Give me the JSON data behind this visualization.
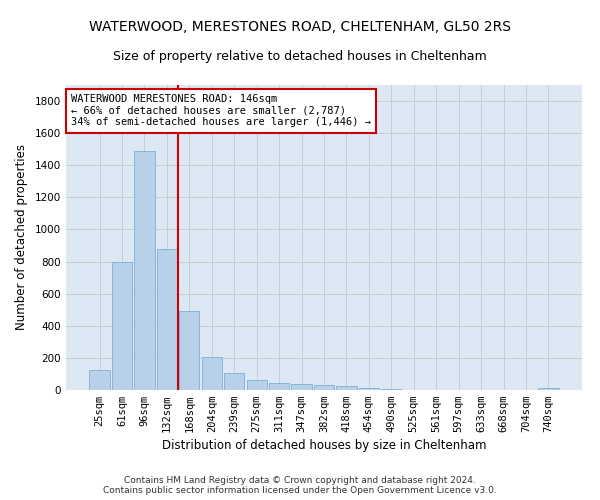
{
  "title1": "WATERWOOD, MERESTONES ROAD, CHELTENHAM, GL50 2RS",
  "title2": "Size of property relative to detached houses in Cheltenham",
  "xlabel": "Distribution of detached houses by size in Cheltenham",
  "ylabel": "Number of detached properties",
  "footer1": "Contains HM Land Registry data © Crown copyright and database right 2024.",
  "footer2": "Contains public sector information licensed under the Open Government Licence v3.0.",
  "categories": [
    "25sqm",
    "61sqm",
    "96sqm",
    "132sqm",
    "168sqm",
    "204sqm",
    "239sqm",
    "275sqm",
    "311sqm",
    "347sqm",
    "382sqm",
    "418sqm",
    "454sqm",
    "490sqm",
    "525sqm",
    "561sqm",
    "597sqm",
    "633sqm",
    "668sqm",
    "704sqm",
    "740sqm"
  ],
  "values": [
    125,
    800,
    1490,
    880,
    490,
    205,
    105,
    65,
    45,
    35,
    30,
    25,
    15,
    5,
    0,
    0,
    0,
    0,
    0,
    0,
    15
  ],
  "bar_color": "#b8d0e8",
  "bar_edge_color": "#7aafd4",
  "vline_index": 3,
  "vline_color": "#cc0000",
  "annotation_text": "WATERWOOD MERESTONES ROAD: 146sqm\n← 66% of detached houses are smaller (2,787)\n34% of semi-detached houses are larger (1,446) →",
  "annotation_box_color": "#ffffff",
  "annotation_box_edge": "#cc0000",
  "ylim": [
    0,
    1900
  ],
  "yticks": [
    0,
    200,
    400,
    600,
    800,
    1000,
    1200,
    1400,
    1600,
    1800
  ],
  "grid_color": "#cccccc",
  "bg_color": "#dde8f5",
  "title_fontsize": 10,
  "subtitle_fontsize": 9,
  "axis_label_fontsize": 8.5,
  "tick_fontsize": 7.5,
  "footer_fontsize": 6.5
}
